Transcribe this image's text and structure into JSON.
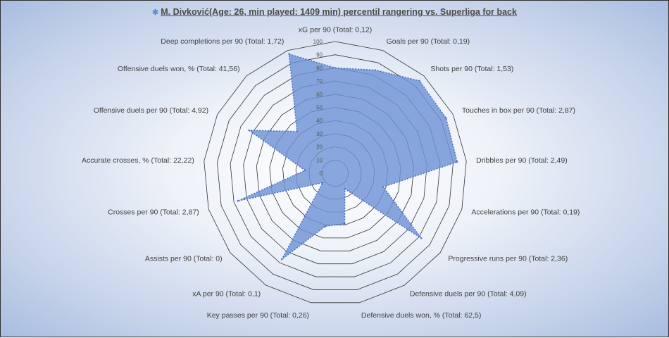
{
  "title": {
    "player": "M. Divković(Age: 26, min played: 1409 min) percentil rangering vs. Superliga for back",
    "flag_icon": "flag-icon"
  },
  "colors": {
    "fill": "#6f93d6",
    "stroke": "#4b6fbf",
    "grid": "#333333"
  },
  "chart_data": {
    "type": "radar",
    "title": "M. Divković(Age: 26, min played: 1409 min) percentil rangering vs. Superliga for back",
    "axis_range": [
      0,
      100
    ],
    "ticks": [
      "0",
      "10",
      "20",
      "30",
      "40",
      "50",
      "60",
      "70",
      "80",
      "90",
      "100"
    ],
    "categories": [
      "xG per 90 (Total: 0,12)",
      "Goals per 90 (Total: 0,19)",
      "Shots per 90 (Total: 1,53)",
      "Touches in box per 90 (Total: 2,87)",
      "Dribbles per 90 (Total: 2,49)",
      "Accelerations per 90 (Total: 0,19)",
      "Progressive runs per 90 (Total: 2,36)",
      "Defensive duels per 90 (Total: 4,09)",
      "Defensive duels won, % (Total: 62,5)",
      "Key passes per 90 (Total: 0,26)",
      "xA per 90 (Total: 0,1)",
      "Assists per 90 (Total: 0)",
      "Crosses per 90 (Total: 2,87)",
      "Accurate crosses, % (Total: 22,22)",
      "Offensive duels per 90 (Total: 4,92)",
      "Offensive duels won, % (Total: 41,56)",
      "Deep completions per 90 (Total: 1,72)"
    ],
    "values": [
      80,
      84,
      95,
      94,
      93,
      38,
      82,
      14,
      39,
      41,
      77,
      12,
      77,
      23,
      73,
      43,
      97
    ]
  }
}
